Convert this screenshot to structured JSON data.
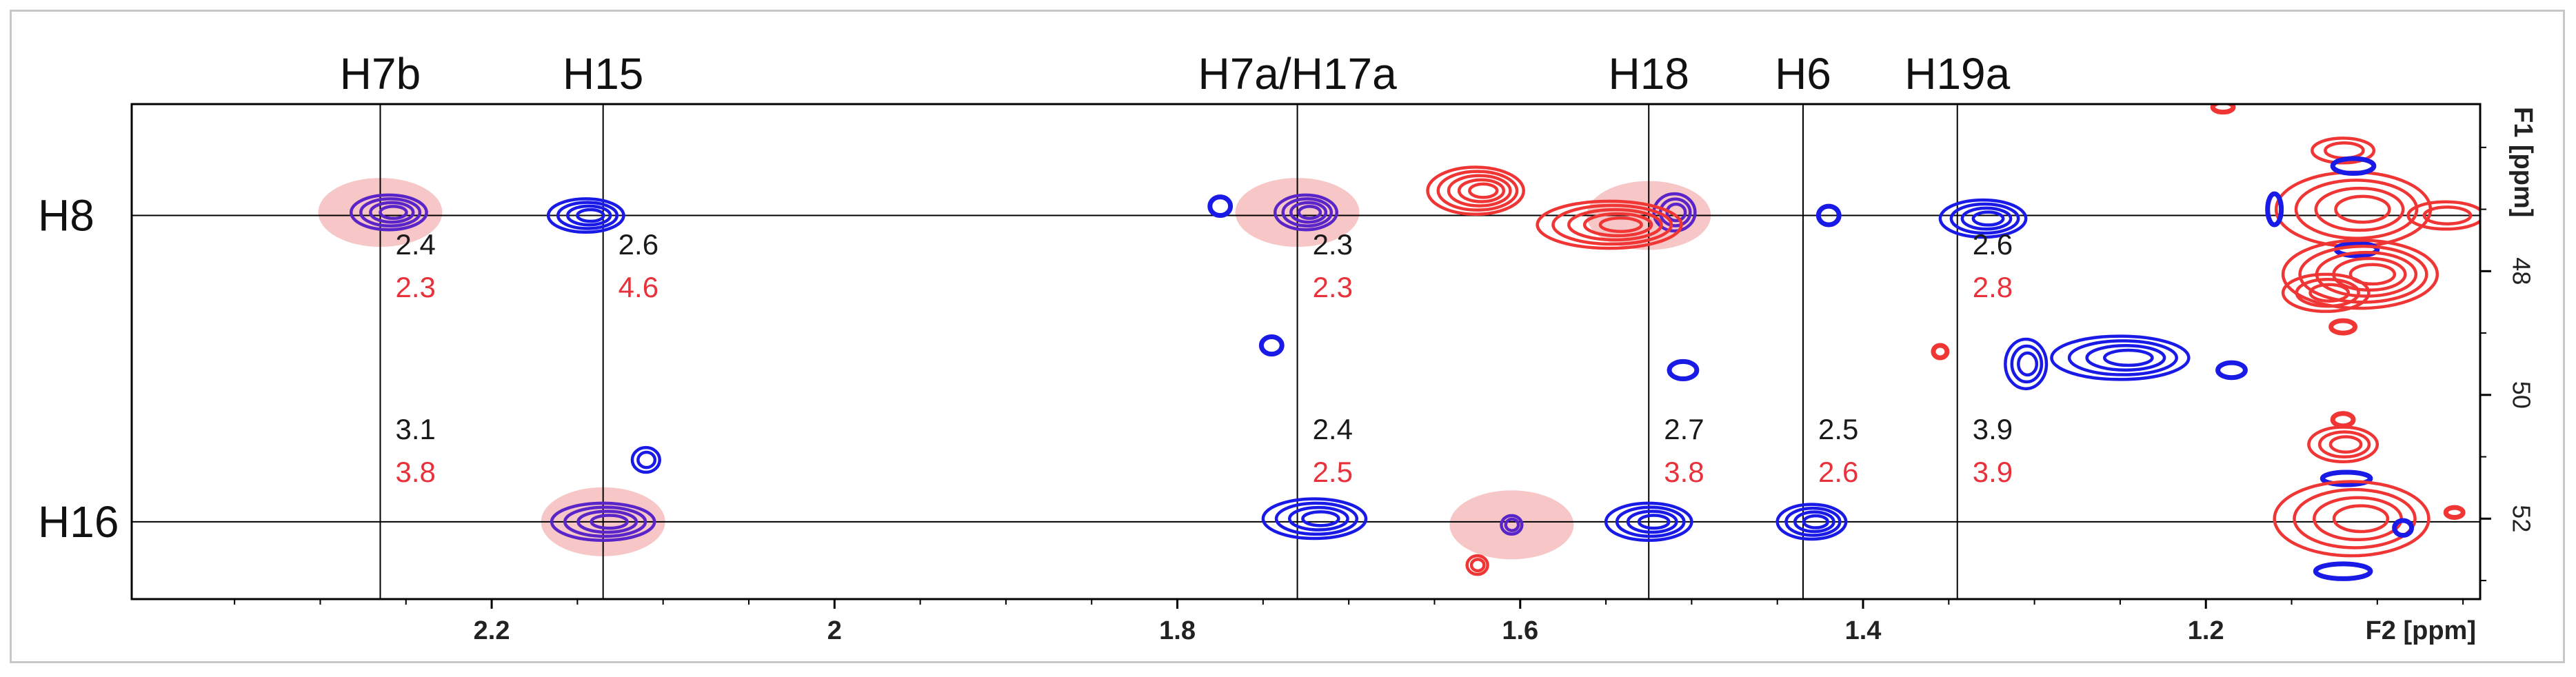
{
  "chart_data": {
    "type": "2D NMR HSQC spectrum (contour plot)",
    "xlabel": "F2 [ppm]",
    "ylabel": "F1 [ppm]",
    "xlim": [
      2.41,
      1.04
    ],
    "ylim": [
      45.3,
      53.3
    ],
    "x_ticks": [
      2.2,
      2.0,
      1.8,
      1.6,
      1.4,
      1.2
    ],
    "y_ticks": [
      48,
      50,
      52
    ],
    "colors": {
      "blue": "#1a1ae6",
      "red": "#f03535",
      "purple": "#5a25c8",
      "highlight": "#f4b4b4",
      "black_value": "#1a1a1a",
      "red_value": "#e8313a"
    },
    "column_markers": [
      {
        "label": "H7b",
        "x": 2.265
      },
      {
        "label": "H15",
        "x": 2.135
      },
      {
        "label": "H7a/H17a",
        "x": 1.73
      },
      {
        "label": "H18",
        "x": 1.525
      },
      {
        "label": "H6",
        "x": 1.435
      },
      {
        "label": "H19a",
        "x": 1.345
      }
    ],
    "row_markers": [
      {
        "label": "H8",
        "y": 47.1
      },
      {
        "label": "H16",
        "y": 52.05
      }
    ],
    "annotations": [
      {
        "x": 2.265,
        "row": "H8",
        "black": "2.4",
        "red": "2.3"
      },
      {
        "x": 2.135,
        "row": "H8",
        "black": "2.6",
        "red": "4.6"
      },
      {
        "x": 1.73,
        "row": "H8",
        "black": "2.3",
        "red": "2.3"
      },
      {
        "x": 1.345,
        "row": "H8",
        "black": "2.6",
        "red": "2.8"
      },
      {
        "x": 2.265,
        "row": "H16",
        "black": "3.1",
        "red": "3.8"
      },
      {
        "x": 1.73,
        "row": "H16",
        "black": "2.4",
        "red": "2.5"
      },
      {
        "x": 1.525,
        "row": "H16",
        "black": "2.7",
        "red": "3.8"
      },
      {
        "x": 1.435,
        "row": "H16",
        "black": "2.5",
        "red": "2.6"
      },
      {
        "x": 1.345,
        "row": "H16",
        "black": "3.9",
        "red": "3.9"
      }
    ],
    "highlights": [
      {
        "x": 2.265,
        "y": 47.05
      },
      {
        "x": 1.73,
        "y": 47.05
      },
      {
        "x": 1.525,
        "y": 47.1
      },
      {
        "x": 2.135,
        "y": 52.05
      },
      {
        "x": 1.605,
        "y": 52.1
      }
    ],
    "peaks": [
      {
        "x": 2.26,
        "y": 47.05,
        "color": "purple",
        "rx": 0.022,
        "ry": 0.28,
        "levels": 4
      },
      {
        "x": 2.145,
        "y": 47.1,
        "color": "blue",
        "rx": 0.022,
        "ry": 0.27,
        "levels": 4
      },
      {
        "x": 1.725,
        "y": 47.05,
        "color": "purple",
        "rx": 0.018,
        "ry": 0.28,
        "levels": 4
      },
      {
        "x": 1.775,
        "y": 46.95,
        "color": "blue",
        "rx": 0.006,
        "ry": 0.15,
        "levels": 1
      },
      {
        "x": 1.51,
        "y": 47.05,
        "color": "purple",
        "rx": 0.012,
        "ry": 0.3,
        "levels": 3
      },
      {
        "x": 1.42,
        "y": 47.1,
        "color": "blue",
        "rx": 0.006,
        "ry": 0.15,
        "levels": 1
      },
      {
        "x": 1.33,
        "y": 47.15,
        "color": "blue",
        "rx": 0.025,
        "ry": 0.3,
        "levels": 4
      },
      {
        "x": 1.626,
        "y": 46.7,
        "color": "red",
        "rx": 0.028,
        "ry": 0.38,
        "levels": 5
      },
      {
        "x": 1.548,
        "y": 47.25,
        "color": "red",
        "rx": 0.042,
        "ry": 0.38,
        "levels": 5
      },
      {
        "x": 1.114,
        "y": 47.0,
        "color": "red",
        "rx": 0.045,
        "ry": 0.6,
        "levels": 4
      },
      {
        "x": 1.06,
        "y": 47.1,
        "color": "red",
        "rx": 0.022,
        "ry": 0.22,
        "levels": 2
      },
      {
        "x": 1.12,
        "y": 46.05,
        "color": "red",
        "rx": 0.018,
        "ry": 0.2,
        "levels": 2
      },
      {
        "x": 1.114,
        "y": 46.3,
        "color": "blue",
        "rx": 0.012,
        "ry": 0.12,
        "levels": 1
      },
      {
        "x": 1.16,
        "y": 47.0,
        "color": "blue",
        "rx": 0.004,
        "ry": 0.25,
        "levels": 1
      },
      {
        "x": 1.112,
        "y": 47.65,
        "color": "blue",
        "rx": 0.012,
        "ry": 0.1,
        "levels": 1
      },
      {
        "x": 1.11,
        "y": 48.05,
        "color": "red",
        "rx": 0.045,
        "ry": 0.55,
        "levels": 5
      },
      {
        "x": 1.13,
        "y": 48.35,
        "color": "red",
        "rx": 0.025,
        "ry": 0.3,
        "levels": 3
      },
      {
        "x": 1.12,
        "y": 48.9,
        "color": "red",
        "rx": 0.007,
        "ry": 0.1,
        "levels": 1
      },
      {
        "x": 1.745,
        "y": 49.2,
        "color": "blue",
        "rx": 0.006,
        "ry": 0.14,
        "levels": 1
      },
      {
        "x": 1.505,
        "y": 49.6,
        "color": "blue",
        "rx": 0.008,
        "ry": 0.14,
        "levels": 1
      },
      {
        "x": 1.305,
        "y": 49.5,
        "color": "blue",
        "rx": 0.012,
        "ry": 0.4,
        "levels": 3
      },
      {
        "x": 1.25,
        "y": 49.4,
        "color": "blue",
        "rx": 0.04,
        "ry": 0.35,
        "levels": 4
      },
      {
        "x": 1.185,
        "y": 49.6,
        "color": "blue",
        "rx": 0.008,
        "ry": 0.12,
        "levels": 1
      },
      {
        "x": 1.355,
        "y": 49.3,
        "color": "red",
        "rx": 0.004,
        "ry": 0.1,
        "levels": 1
      },
      {
        "x": 1.12,
        "y": 50.4,
        "color": "red",
        "rx": 0.006,
        "ry": 0.1,
        "levels": 1
      },
      {
        "x": 1.12,
        "y": 50.8,
        "color": "red",
        "rx": 0.02,
        "ry": 0.28,
        "levels": 3
      },
      {
        "x": 1.118,
        "y": 51.35,
        "color": "blue",
        "rx": 0.014,
        "ry": 0.1,
        "levels": 1
      },
      {
        "x": 2.11,
        "y": 51.05,
        "color": "blue",
        "rx": 0.008,
        "ry": 0.2,
        "levels": 2
      },
      {
        "x": 2.135,
        "y": 52.05,
        "color": "purple",
        "rx": 0.03,
        "ry": 0.3,
        "levels": 4
      },
      {
        "x": 1.72,
        "y": 52.0,
        "color": "blue",
        "rx": 0.03,
        "ry": 0.32,
        "levels": 4
      },
      {
        "x": 1.605,
        "y": 52.1,
        "color": "purple",
        "rx": 0.006,
        "ry": 0.15,
        "levels": 2
      },
      {
        "x": 1.625,
        "y": 52.75,
        "color": "red",
        "rx": 0.006,
        "ry": 0.15,
        "levels": 2
      },
      {
        "x": 1.525,
        "y": 52.05,
        "color": "blue",
        "rx": 0.025,
        "ry": 0.3,
        "levels": 4
      },
      {
        "x": 1.43,
        "y": 52.05,
        "color": "blue",
        "rx": 0.02,
        "ry": 0.28,
        "levels": 4
      },
      {
        "x": 1.115,
        "y": 52.0,
        "color": "red",
        "rx": 0.045,
        "ry": 0.6,
        "levels": 4
      },
      {
        "x": 1.12,
        "y": 52.85,
        "color": "blue",
        "rx": 0.016,
        "ry": 0.12,
        "levels": 1
      },
      {
        "x": 1.085,
        "y": 52.15,
        "color": "blue",
        "rx": 0.005,
        "ry": 0.12,
        "levels": 1
      },
      {
        "x": 1.055,
        "y": 51.9,
        "color": "red",
        "rx": 0.005,
        "ry": 0.08,
        "levels": 1
      },
      {
        "x": 1.19,
        "y": 45.35,
        "color": "red",
        "rx": 0.006,
        "ry": 0.08,
        "levels": 1
      }
    ]
  }
}
